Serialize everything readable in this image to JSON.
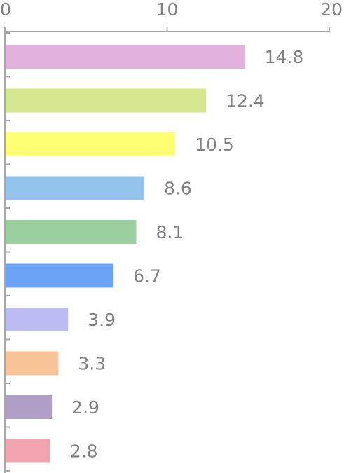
{
  "chart_data": {
    "type": "bar",
    "orientation": "horizontal",
    "xlim": [
      0,
      20
    ],
    "x_ticks": [
      0,
      10,
      20
    ],
    "x_tick_labels": [
      "0",
      "10",
      "20"
    ],
    "x_axis_position": "top",
    "grid": false,
    "legend": "none",
    "values": [
      14.8,
      12.4,
      10.5,
      8.6,
      8.1,
      6.7,
      3.9,
      3.3,
      2.9,
      2.8
    ],
    "data_labels": [
      "14.8",
      "12.4",
      "10.5",
      "8.6",
      "8.1",
      "6.7",
      "3.9",
      "3.3",
      "2.9",
      "2.8"
    ],
    "bar_colors": [
      "#e2b1de",
      "#d6e68f",
      "#ffff73",
      "#94c3ec",
      "#9ccf9f",
      "#6aa3f5",
      "#bcbcf3",
      "#f8c397",
      "#b09ec7",
      "#f2a5b1"
    ]
  }
}
